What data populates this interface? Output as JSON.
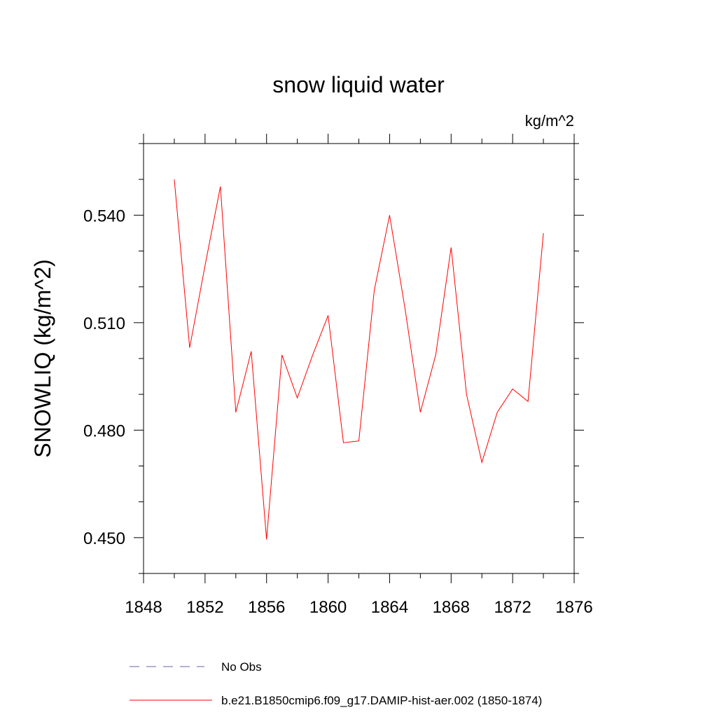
{
  "chart_data": {
    "type": "line",
    "title": "snow liquid water",
    "units_label": "kg/m^2",
    "ylabel": "SNOWLIQ  (kg/m^2)",
    "xlabel": "",
    "xlim": [
      1848,
      1876
    ],
    "ylim": [
      0.44,
      0.56
    ],
    "x_ticks": [
      1848,
      1852,
      1856,
      1860,
      1864,
      1868,
      1872,
      1876
    ],
    "x_tick_labels": [
      "1848",
      "1852",
      "1856",
      "1860",
      "1864",
      "1868",
      "1872",
      "1876"
    ],
    "y_ticks": [
      0.45,
      0.48,
      0.51,
      0.54
    ],
    "y_tick_labels": [
      "0.450",
      "0.480",
      "0.510",
      "0.540"
    ],
    "y_minor_ticks": [
      0.44,
      0.46,
      0.47,
      0.49,
      0.5,
      0.52,
      0.53,
      0.55,
      0.56
    ],
    "x_minor_step": 2,
    "grid": false,
    "series": [
      {
        "name": "b.e21.B1850cmip6.f09_g17.DAMIP-hist-aer.002 (1850-1874)",
        "color": "#ff0000",
        "style": "solid",
        "x": [
          1850,
          1851,
          1852,
          1853,
          1854,
          1855,
          1856,
          1857,
          1858,
          1859,
          1860,
          1861,
          1862,
          1863,
          1864,
          1865,
          1866,
          1867,
          1868,
          1869,
          1870,
          1871,
          1872,
          1873,
          1874
        ],
        "y": [
          0.55,
          0.503,
          0.526,
          0.548,
          0.485,
          0.502,
          0.4495,
          0.501,
          0.489,
          0.501,
          0.512,
          0.4765,
          0.477,
          0.519,
          0.54,
          0.514,
          0.485,
          0.501,
          0.531,
          0.49,
          0.471,
          0.485,
          0.4915,
          0.488,
          0.535
        ]
      }
    ],
    "legend": {
      "placement": "bottom",
      "entries": [
        {
          "label": "No Obs",
          "color": "#6666aa",
          "style": "dashed"
        },
        {
          "label": "b.e21.B1850cmip6.f09_g17.DAMIP-hist-aer.002 (1850-1874)",
          "color": "#ff0000",
          "style": "solid"
        }
      ]
    }
  }
}
